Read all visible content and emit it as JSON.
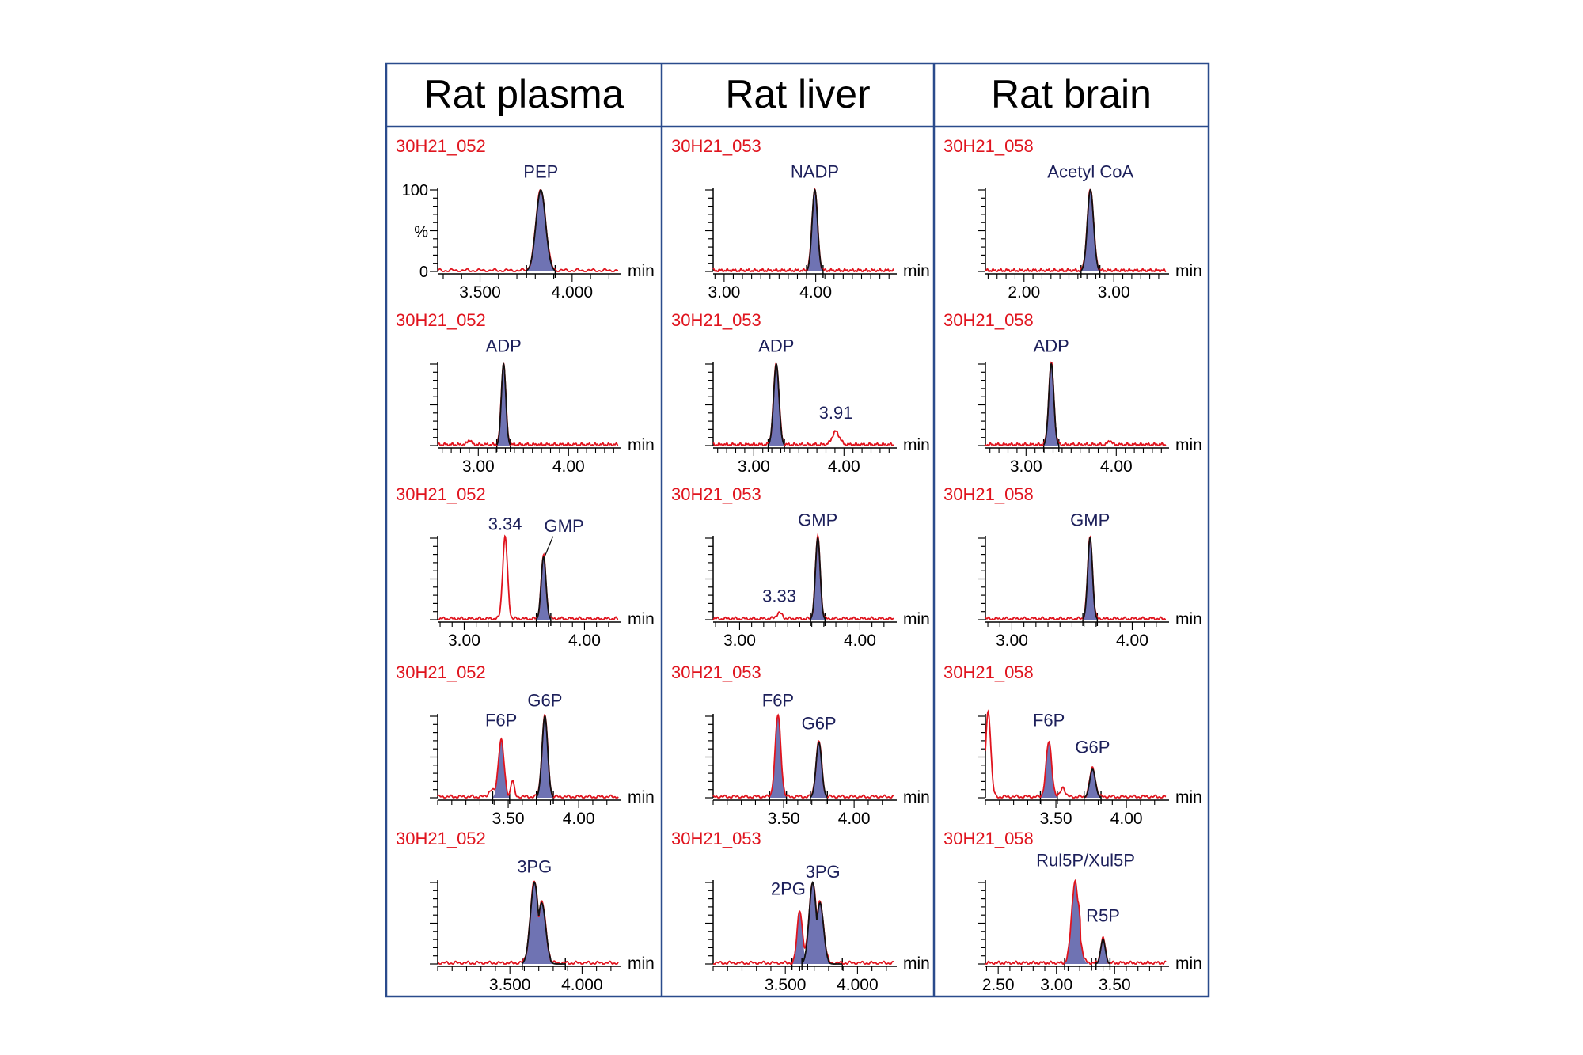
{
  "headers": [
    "Rat plasma",
    "Rat liver",
    "Rat brain"
  ],
  "y_axis": {
    "top_label": "100",
    "unit_label": "%",
    "zero_label": "0"
  },
  "x_unit": "min",
  "colors": {
    "frame": "#2a4b8c",
    "sample_id": "#e0141e",
    "label": "#1c1f5a",
    "fill": "#6f73b3",
    "trace_other": "#e0141e",
    "trace_target": "#111111"
  },
  "chart_data": [
    {
      "type": "line",
      "col": 0,
      "row": 0,
      "sample_id": "30H21_052",
      "x_range": [
        3.27,
        4.25
      ],
      "x_ticks": [
        "3.500",
        "4.000"
      ],
      "tick_values": [
        3.5,
        4.0
      ],
      "show_y_labels": true,
      "peaks": [
        {
          "label": "PEP",
          "rt": 3.83,
          "height": 1.0,
          "width": 0.026,
          "filled": true,
          "target": true,
          "label_pos": [
            3.83,
            1.15
          ]
        }
      ]
    },
    {
      "type": "line",
      "col": 1,
      "row": 0,
      "sample_id": "30H21_053",
      "x_range": [
        2.88,
        4.85
      ],
      "x_ticks": [
        "3.00",
        "4.00"
      ],
      "tick_values": [
        3.0,
        4.0
      ],
      "peaks": [
        {
          "label": "NADP",
          "rt": 3.99,
          "height": 1.0,
          "width": 0.03,
          "filled": true,
          "target": true,
          "label_pos": [
            3.99,
            1.15
          ]
        }
      ]
    },
    {
      "type": "line",
      "col": 2,
      "row": 0,
      "sample_id": "30H21_058",
      "x_range": [
        1.57,
        3.58
      ],
      "x_ticks": [
        "2.00",
        "3.00"
      ],
      "tick_values": [
        2.0,
        3.0
      ],
      "peaks": [
        {
          "label": "Acetyl CoA",
          "rt": 2.74,
          "height": 1.0,
          "width": 0.035,
          "filled": true,
          "target": true,
          "label_pos": [
            2.74,
            1.15
          ]
        }
      ]
    },
    {
      "type": "line",
      "col": 0,
      "row": 1,
      "sample_id": "30H21_052",
      "x_range": [
        2.55,
        4.55
      ],
      "x_ticks": [
        "3.00",
        "4.00"
      ],
      "tick_values": [
        3.0,
        4.0
      ],
      "peaks": [
        {
          "label": "ADP",
          "rt": 3.28,
          "height": 1.0,
          "width": 0.025,
          "filled": true,
          "target": true,
          "label_pos": [
            3.28,
            1.15
          ]
        },
        {
          "label": "",
          "rt": 2.9,
          "height": 0.06,
          "width": 0.02,
          "filled": false,
          "target": false
        }
      ]
    },
    {
      "type": "line",
      "col": 1,
      "row": 1,
      "sample_id": "30H21_053",
      "x_range": [
        2.55,
        4.55
      ],
      "x_ticks": [
        "3.00",
        "4.00"
      ],
      "tick_values": [
        3.0,
        4.0
      ],
      "peaks": [
        {
          "label": "ADP",
          "rt": 3.25,
          "height": 1.0,
          "width": 0.03,
          "filled": true,
          "target": true,
          "label_pos": [
            3.25,
            1.15
          ]
        },
        {
          "label": "3.91",
          "rt": 3.91,
          "height": 0.16,
          "width": 0.04,
          "filled": false,
          "target": false,
          "label_pos": [
            3.91,
            0.33
          ]
        }
      ]
    },
    {
      "type": "line",
      "col": 2,
      "row": 1,
      "sample_id": "30H21_058",
      "x_range": [
        2.55,
        4.55
      ],
      "x_ticks": [
        "3.00",
        "4.00"
      ],
      "tick_values": [
        3.0,
        4.0
      ],
      "peaks": [
        {
          "label": "ADP",
          "rt": 3.28,
          "height": 1.0,
          "width": 0.028,
          "filled": true,
          "target": true,
          "label_pos": [
            3.28,
            1.15
          ]
        },
        {
          "label": "",
          "rt": 3.93,
          "height": 0.05,
          "width": 0.02,
          "filled": false,
          "target": false
        }
      ]
    },
    {
      "type": "line",
      "col": 0,
      "row": 2,
      "sample_id": "30H21_052",
      "x_range": [
        2.78,
        4.28
      ],
      "x_ticks": [
        "3.00",
        "4.00"
      ],
      "tick_values": [
        3.0,
        4.0
      ],
      "peaks": [
        {
          "label": "3.34",
          "rt": 3.34,
          "height": 1.0,
          "width": 0.02,
          "filled": false,
          "target": false,
          "label_pos": [
            3.34,
            1.1
          ]
        },
        {
          "label": "GMP",
          "rt": 3.66,
          "height": 0.77,
          "width": 0.02,
          "filled": true,
          "target": true,
          "label_pos": [
            3.83,
            1.08
          ]
        }
      ]
    },
    {
      "type": "line",
      "col": 1,
      "row": 2,
      "sample_id": "30H21_053",
      "x_range": [
        2.78,
        4.28
      ],
      "x_ticks": [
        "3.00",
        "4.00"
      ],
      "tick_values": [
        3.0,
        4.0
      ],
      "peaks": [
        {
          "label": "GMP",
          "rt": 3.65,
          "height": 1.0,
          "width": 0.02,
          "filled": true,
          "target": true,
          "label_pos": [
            3.65,
            1.15
          ]
        },
        {
          "label": "3.33",
          "rt": 3.33,
          "height": 0.07,
          "width": 0.025,
          "filled": false,
          "target": false,
          "label_pos": [
            3.33,
            0.22
          ]
        }
      ]
    },
    {
      "type": "line",
      "col": 2,
      "row": 2,
      "sample_id": "30H21_058",
      "x_range": [
        2.78,
        4.28
      ],
      "x_ticks": [
        "3.00",
        "4.00"
      ],
      "tick_values": [
        3.0,
        4.0
      ],
      "peaks": [
        {
          "label": "GMP",
          "rt": 3.65,
          "height": 1.0,
          "width": 0.02,
          "filled": true,
          "target": true,
          "label_pos": [
            3.65,
            1.15
          ]
        }
      ]
    },
    {
      "type": "line",
      "col": 0,
      "row": 3,
      "sample_id": "30H21_052",
      "x_range": [
        3.0,
        4.28
      ],
      "x_ticks": [
        "3.50",
        "4.00"
      ],
      "tick_values": [
        3.5,
        4.0
      ],
      "peaks": [
        {
          "label": "F6P",
          "rt": 3.45,
          "height": 0.7,
          "width": 0.02,
          "filled": true,
          "target": false,
          "label_pos": [
            3.45,
            0.88
          ]
        },
        {
          "label": "G6P",
          "rt": 3.76,
          "height": 1.0,
          "width": 0.02,
          "filled": true,
          "target": true,
          "label_pos": [
            3.76,
            1.12
          ]
        },
        {
          "label": "",
          "rt": 3.53,
          "height": 0.2,
          "width": 0.012,
          "filled": false,
          "target": false
        },
        {
          "label": "",
          "rt": 3.38,
          "height": 0.08,
          "width": 0.02,
          "filled": false,
          "target": false
        }
      ]
    },
    {
      "type": "line",
      "col": 1,
      "row": 3,
      "sample_id": "30H21_053",
      "x_range": [
        3.0,
        4.28
      ],
      "x_ticks": [
        "3.50",
        "4.00"
      ],
      "tick_values": [
        3.5,
        4.0
      ],
      "peaks": [
        {
          "label": "F6P",
          "rt": 3.46,
          "height": 1.0,
          "width": 0.02,
          "filled": true,
          "target": false,
          "label_pos": [
            3.46,
            1.12
          ]
        },
        {
          "label": "G6P",
          "rt": 3.75,
          "height": 0.68,
          "width": 0.02,
          "filled": true,
          "target": true,
          "label_pos": [
            3.75,
            0.84
          ]
        }
      ]
    },
    {
      "type": "line",
      "col": 2,
      "row": 3,
      "sample_id": "30H21_058",
      "x_range": [
        3.0,
        4.28
      ],
      "x_ticks": [
        "3.50",
        "4.00"
      ],
      "tick_values": [
        3.5,
        4.0
      ],
      "peaks": [
        {
          "label": "",
          "rt": 3.02,
          "height": 1.05,
          "width": 0.018,
          "filled": false,
          "target": false
        },
        {
          "label": "F6P",
          "rt": 3.45,
          "height": 0.67,
          "width": 0.02,
          "filled": true,
          "target": false,
          "label_pos": [
            3.45,
            0.88
          ]
        },
        {
          "label": "G6P",
          "rt": 3.76,
          "height": 0.35,
          "width": 0.02,
          "filled": true,
          "target": true,
          "label_pos": [
            3.76,
            0.55
          ]
        },
        {
          "label": "",
          "rt": 3.55,
          "height": 0.12,
          "width": 0.015,
          "filled": false,
          "target": false
        }
      ]
    },
    {
      "type": "line",
      "col": 0,
      "row": 4,
      "sample_id": "30H21_052",
      "x_range": [
        3.0,
        4.25
      ],
      "x_ticks": [
        "3.500",
        "4.000"
      ],
      "tick_values": [
        3.5,
        4.0
      ],
      "peaks": [
        {
          "label": "3PG",
          "rt": 3.67,
          "height": 1.0,
          "width": 0.028,
          "filled": true,
          "target": true,
          "tail": 0.05,
          "label_pos": [
            3.67,
            1.12
          ]
        }
      ]
    },
    {
      "type": "line",
      "col": 1,
      "row": 4,
      "sample_id": "30H21_053",
      "x_range": [
        3.0,
        4.25
      ],
      "x_ticks": [
        "3.500",
        "4.000"
      ],
      "tick_values": [
        3.5,
        4.0
      ],
      "peaks": [
        {
          "label": "2PG",
          "rt": 3.6,
          "height": 0.65,
          "width": 0.018,
          "filled": true,
          "target": false,
          "label_pos": [
            3.52,
            0.85
          ]
        },
        {
          "label": "3PG",
          "rt": 3.69,
          "height": 1.0,
          "width": 0.025,
          "filled": true,
          "target": true,
          "tail": 0.05,
          "label_pos": [
            3.76,
            1.06
          ]
        }
      ]
    },
    {
      "type": "line",
      "col": 2,
      "row": 4,
      "sample_id": "30H21_058",
      "x_range": [
        2.39,
        3.94
      ],
      "x_ticks": [
        "2.50",
        "3.00",
        "3.50"
      ],
      "tick_values": [
        2.5,
        3.0,
        3.5
      ],
      "peaks": [
        {
          "label": "Rul5P/Xul5P",
          "rt": 3.16,
          "height": 1.0,
          "width": 0.03,
          "filled": true,
          "target": false,
          "tail": 0.02,
          "label_pos": [
            3.25,
            1.2
          ]
        },
        {
          "label": "R5P",
          "rt": 3.4,
          "height": 0.3,
          "width": 0.02,
          "filled": true,
          "target": true,
          "label_pos": [
            3.4,
            0.52
          ]
        }
      ]
    }
  ]
}
